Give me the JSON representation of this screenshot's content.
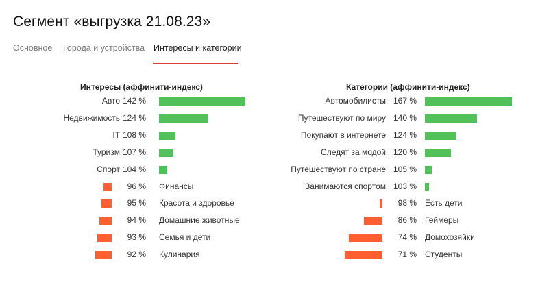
{
  "header": {
    "title": "Сегмент «выгрузка 21.08.23»"
  },
  "tabs": [
    {
      "label": "Основное",
      "active": false
    },
    {
      "label": "Города и устройства",
      "active": false
    },
    {
      "label": "Интересы и категории",
      "active": true
    }
  ],
  "colors": {
    "positive": "#52c15a",
    "negative": "#fe5f31",
    "tab_accent": "#e03c2c"
  },
  "chart_data": [
    {
      "type": "bar",
      "title": "Интересы (аффинити-индекс)",
      "baseline": 100,
      "categories": [
        "Авто",
        "Недвижимость",
        "IT",
        "Туризм",
        "Спорт",
        "Финансы",
        "Красота и здоровье",
        "Домашние животные",
        "Семья и дети",
        "Кулинария"
      ],
      "values": [
        142,
        124,
        108,
        107,
        104,
        96,
        95,
        94,
        93,
        92
      ],
      "labels": [
        "142 %",
        "124 %",
        "108 %",
        "107 %",
        "104 %",
        "96 %",
        "95 %",
        "94 %",
        "93 %",
        "92 %"
      ]
    },
    {
      "type": "bar",
      "title": "Категории (аффинити-индекс)",
      "baseline": 100,
      "categories": [
        "Автомобилисты",
        "Путешествуют по миру",
        "Покупают в интернете",
        "Следят за модой",
        "Путешествуют по стране",
        "Занимаются спортом",
        "Есть дети",
        "Геймеры",
        "Домохозяйки",
        "Студенты"
      ],
      "values": [
        167,
        140,
        124,
        120,
        105,
        103,
        98,
        86,
        74,
        71
      ],
      "labels": [
        "167 %",
        "140 %",
        "124 %",
        "120 %",
        "105 %",
        "103 %",
        "98 %",
        "86 %",
        "74 %",
        "71 %"
      ]
    }
  ]
}
